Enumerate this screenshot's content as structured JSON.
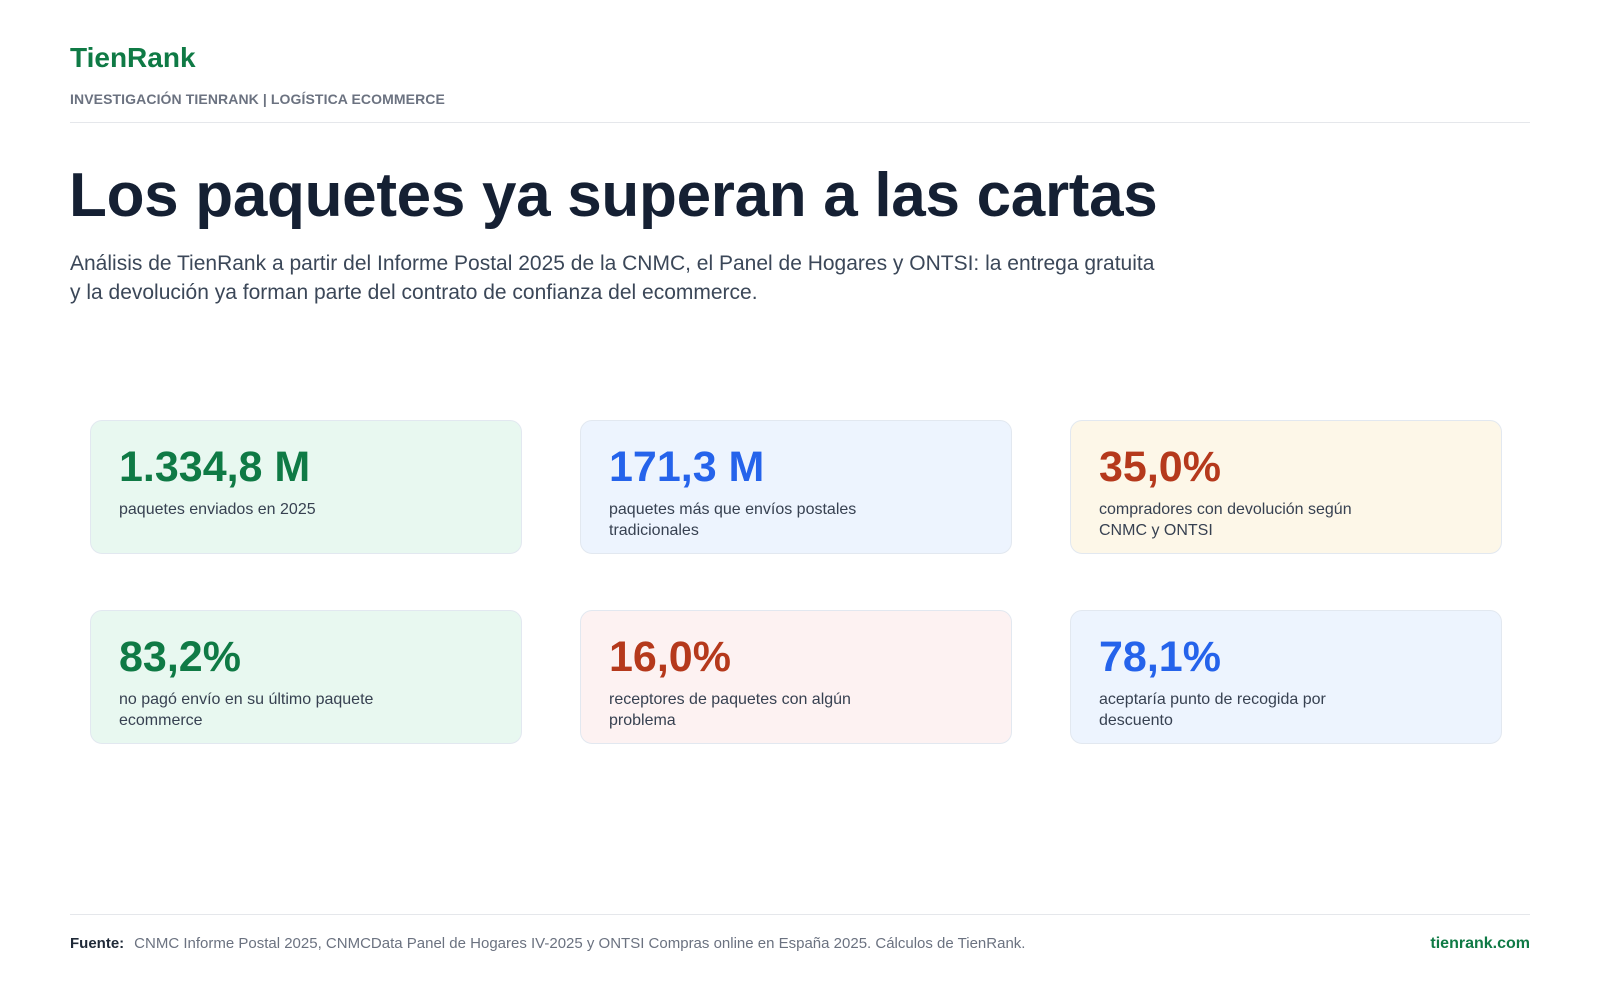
{
  "header": {
    "brand": "TienRank",
    "kicker": "INVESTIGACIÓN TIENRANK | LOGÍSTICA ECOMMERCE"
  },
  "hero": {
    "title": "Los paquetes ya superan a las cartas",
    "subtitle": "Análisis de TienRank a partir del Informe Postal 2025 de la CNMC, el Panel de Hogares y ONTSI: la entrega gratuita y la devolución ya forman parte del contrato de confianza del ecommerce."
  },
  "stats": [
    {
      "value": "1.334,8 M",
      "label": "paquetes enviados en 2025",
      "color": "#0f7a45",
      "bg": "#e8f8f0"
    },
    {
      "value": "171,3 M",
      "label": "paquetes más que envíos postales tradicionales",
      "color": "#2563eb",
      "bg": "#edf4fe"
    },
    {
      "value": "35,0%",
      "label": "compradores con devolución según CNMC y ONTSI",
      "color": "#b5391c",
      "bg": "#fdf7e8"
    },
    {
      "value": "83,2%",
      "label": "no pagó envío en su último paquete ecommerce",
      "color": "#0f7a45",
      "bg": "#e8f8f0"
    },
    {
      "value": "16,0%",
      "label": "receptores de paquetes con algún problema",
      "color": "#b5391c",
      "bg": "#fdf2f2"
    },
    {
      "value": "78,1%",
      "label": "aceptaría punto de recogida por descuento",
      "color": "#2563eb",
      "bg": "#edf4fe"
    }
  ],
  "footer": {
    "source_label": "Fuente:",
    "source_text": "CNMC Informe Postal 2025, CNMCData Panel de Hogares IV-2025 y ONTSI Compras online en España 2025. Cálculos de TienRank.",
    "site": "tienrank.com"
  }
}
